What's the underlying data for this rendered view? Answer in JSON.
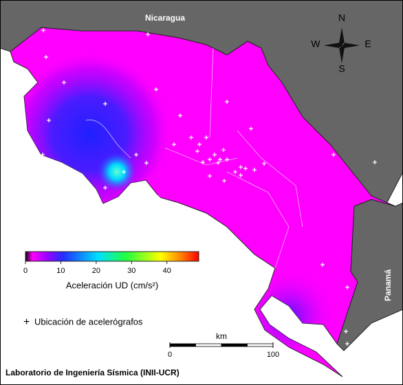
{
  "map": {
    "labels": {
      "nicaragua": "Nicaragua",
      "panama": "Panamá"
    },
    "compass": {
      "n": "N",
      "w": "W",
      "e": "E",
      "s": "S"
    },
    "colorbar": {
      "label": "Aceleración UD (cm/s²)",
      "lim": [
        0,
        49
      ],
      "ticks": [
        0,
        10,
        20,
        30,
        40
      ]
    },
    "legend": "Ubicación de acelerógrafos",
    "scale_bar": {
      "unit": "km",
      "lim": [
        0,
        100
      ],
      "ticks": [
        0,
        100
      ]
    },
    "credit": "Laboratorio de Ingeniería Sísmica (INII-UCR)"
  }
}
